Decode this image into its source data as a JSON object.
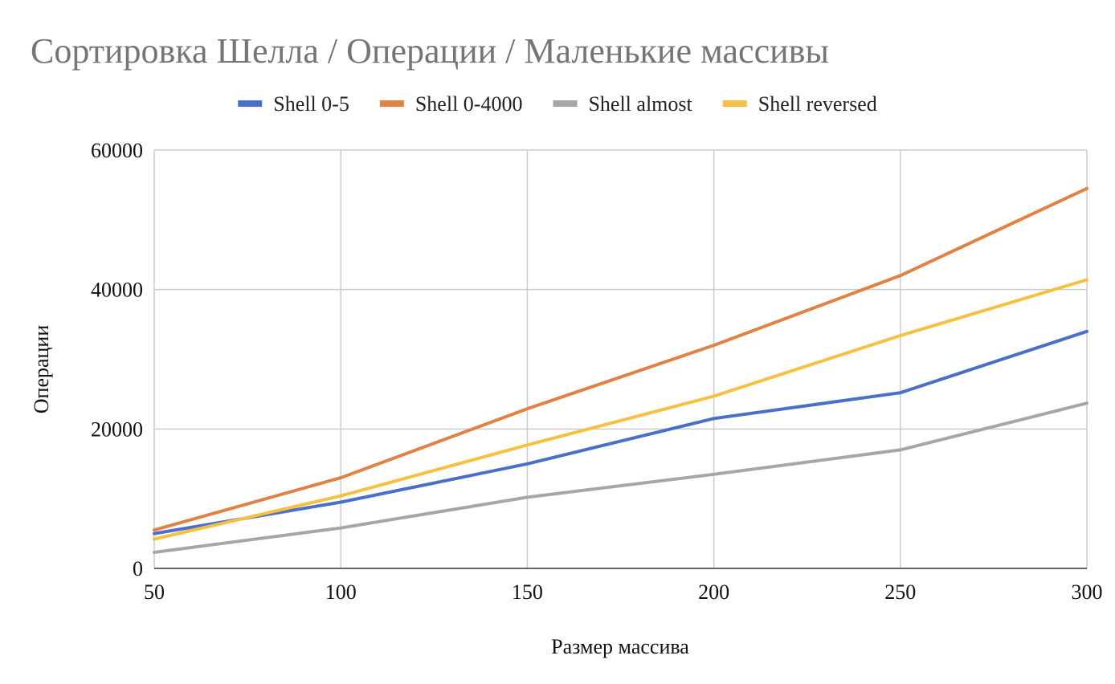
{
  "chart_data": {
    "type": "line",
    "title": "Сортировка Шелла / Операции / Маленькие массивы",
    "xlabel": "Размер массива",
    "ylabel": "Операции",
    "x": [
      50,
      100,
      150,
      200,
      250,
      300
    ],
    "xlim": [
      50,
      300
    ],
    "ylim": [
      0,
      60000
    ],
    "x_ticks": [
      "50",
      "100",
      "150",
      "200",
      "250",
      "300"
    ],
    "y_ticks": [
      "0",
      "20000",
      "40000",
      "60000"
    ],
    "y_tick_values": [
      0,
      20000,
      40000,
      60000
    ],
    "grid": true,
    "legend_position": "top",
    "series": [
      {
        "name": "Shell 0-5",
        "color": "#4a6fc8",
        "values": [
          5000,
          9500,
          15000,
          21500,
          25200,
          34000
        ]
      },
      {
        "name": "Shell 0-4000",
        "color": "#e08243",
        "values": [
          5500,
          13000,
          22900,
          32000,
          42000,
          54500
        ]
      },
      {
        "name": "Shell almost",
        "color": "#a6a6a6",
        "values": [
          2300,
          5800,
          10200,
          13500,
          17000,
          23700
        ]
      },
      {
        "name": "Shell reversed",
        "color": "#f6c042",
        "values": [
          4200,
          10400,
          17700,
          24700,
          33400,
          41400
        ]
      }
    ]
  }
}
